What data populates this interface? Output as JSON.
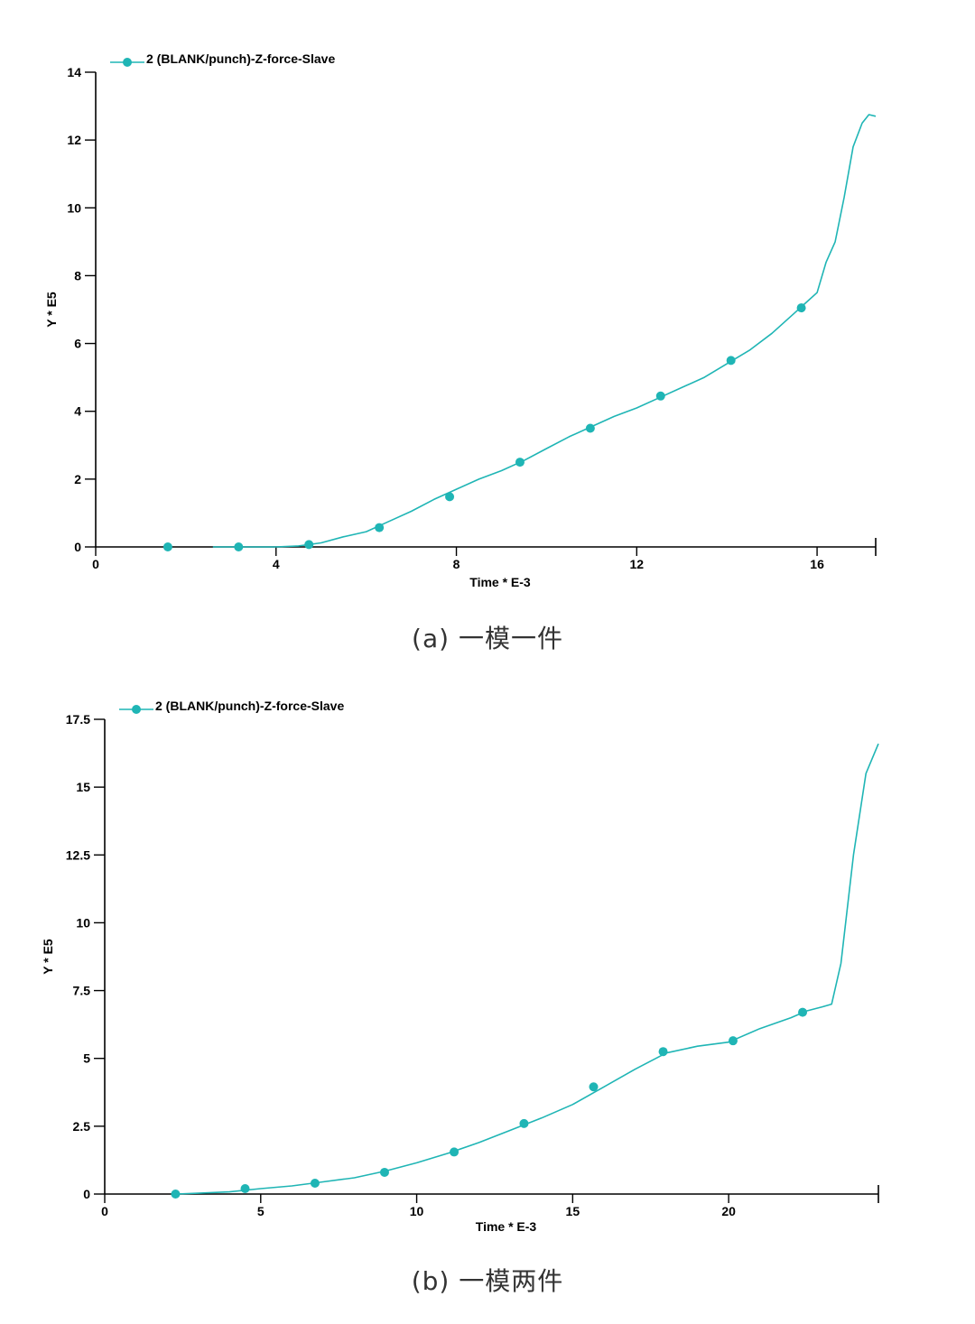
{
  "charts": [
    {
      "caption": "(a) 一模一件",
      "chart_data": {
        "type": "line",
        "xlabel": "Time * E-3",
        "ylabel": "Y * E5",
        "xlim": [
          0,
          17.3
        ],
        "ylim": [
          0,
          14
        ],
        "xticks": [
          0,
          4,
          8,
          12,
          16
        ],
        "xtick_labels": [
          "0",
          "4",
          "8",
          "12",
          "16"
        ],
        "yticks": [
          0,
          2,
          4,
          6,
          8,
          10,
          12,
          14
        ],
        "ytick_labels": [
          "0",
          "2",
          "4",
          "6",
          "8",
          "10",
          "12",
          "14"
        ],
        "legend_position": "top-left",
        "series": [
          {
            "name": "2 (BLANK/punch)-Z-force-Slave",
            "color": "#1fb5b5",
            "x": [
              2.6,
              3.0,
              3.5,
              4.0,
              4.5,
              5.0,
              5.5,
              6.0,
              6.5,
              7.0,
              7.5,
              8.0,
              8.5,
              9.0,
              9.5,
              10.0,
              10.5,
              11.0,
              11.5,
              12.0,
              12.5,
              13.0,
              13.5,
              14.0,
              14.5,
              15.0,
              15.5,
              16.0,
              16.2,
              16.4,
              16.6,
              16.8,
              17.0,
              17.15,
              17.3
            ],
            "y": [
              0.0,
              0.0,
              0.0,
              0.0,
              0.03,
              0.12,
              0.3,
              0.45,
              0.75,
              1.05,
              1.4,
              1.7,
              2.0,
              2.25,
              2.55,
              2.9,
              3.25,
              3.55,
              3.85,
              4.1,
              4.4,
              4.7,
              5.0,
              5.4,
              5.8,
              6.3,
              6.9,
              7.5,
              8.4,
              9.0,
              10.3,
              11.8,
              12.5,
              12.75,
              12.7
            ],
            "marker_x": [
              1.6,
              3.17,
              4.73,
              6.29,
              7.85,
              9.41,
              10.97,
              12.53,
              14.09,
              15.65
            ],
            "marker_y": [
              0.0,
              0.0,
              0.07,
              0.57,
              1.48,
              2.5,
              3.5,
              4.45,
              5.5,
              7.05
            ]
          }
        ]
      }
    },
    {
      "caption": "(b) 一模两件",
      "chart_data": {
        "type": "line",
        "xlabel": "Time * E-3",
        "ylabel": "Y * E5",
        "xlim": [
          0,
          24.8
        ],
        "ylim": [
          0,
          17.5
        ],
        "xticks": [
          0,
          5,
          10,
          15,
          20
        ],
        "xtick_labels": [
          "0",
          "5",
          "10",
          "15",
          "20"
        ],
        "yticks": [
          0,
          2.5,
          5,
          7.5,
          10,
          12.5,
          15,
          17.5
        ],
        "ytick_labels": [
          "0",
          "2.5",
          "5",
          "7.5",
          "10",
          "12.5",
          "15",
          "17.5"
        ],
        "legend_position": "top-left",
        "series": [
          {
            "name": "2 (BLANK/punch)-Z-force-Slave",
            "color": "#1fb5b5",
            "x": [
              2.3,
              3.0,
              4.0,
              5.0,
              6.0,
              7.0,
              8.0,
              9.0,
              10.0,
              11.0,
              12.0,
              13.0,
              14.0,
              15.0,
              16.0,
              17.0,
              18.0,
              19.0,
              20.0,
              21.0,
              22.0,
              22.5,
              23.0,
              23.3,
              23.6,
              24.0,
              24.4,
              24.8
            ],
            "y": [
              0.0,
              0.03,
              0.08,
              0.2,
              0.3,
              0.45,
              0.6,
              0.85,
              1.15,
              1.5,
              1.9,
              2.35,
              2.8,
              3.3,
              3.95,
              4.6,
              5.2,
              5.45,
              5.6,
              6.1,
              6.5,
              6.75,
              6.9,
              7.0,
              8.5,
              12.5,
              15.5,
              16.6
            ],
            "marker_x": [
              2.27,
              4.5,
              6.74,
              8.97,
              11.2,
              13.44,
              15.67,
              17.9,
              20.14,
              22.37
            ],
            "marker_y": [
              0.0,
              0.2,
              0.4,
              0.8,
              1.55,
              2.6,
              3.95,
              5.25,
              5.65,
              6.7
            ]
          }
        ]
      }
    }
  ]
}
